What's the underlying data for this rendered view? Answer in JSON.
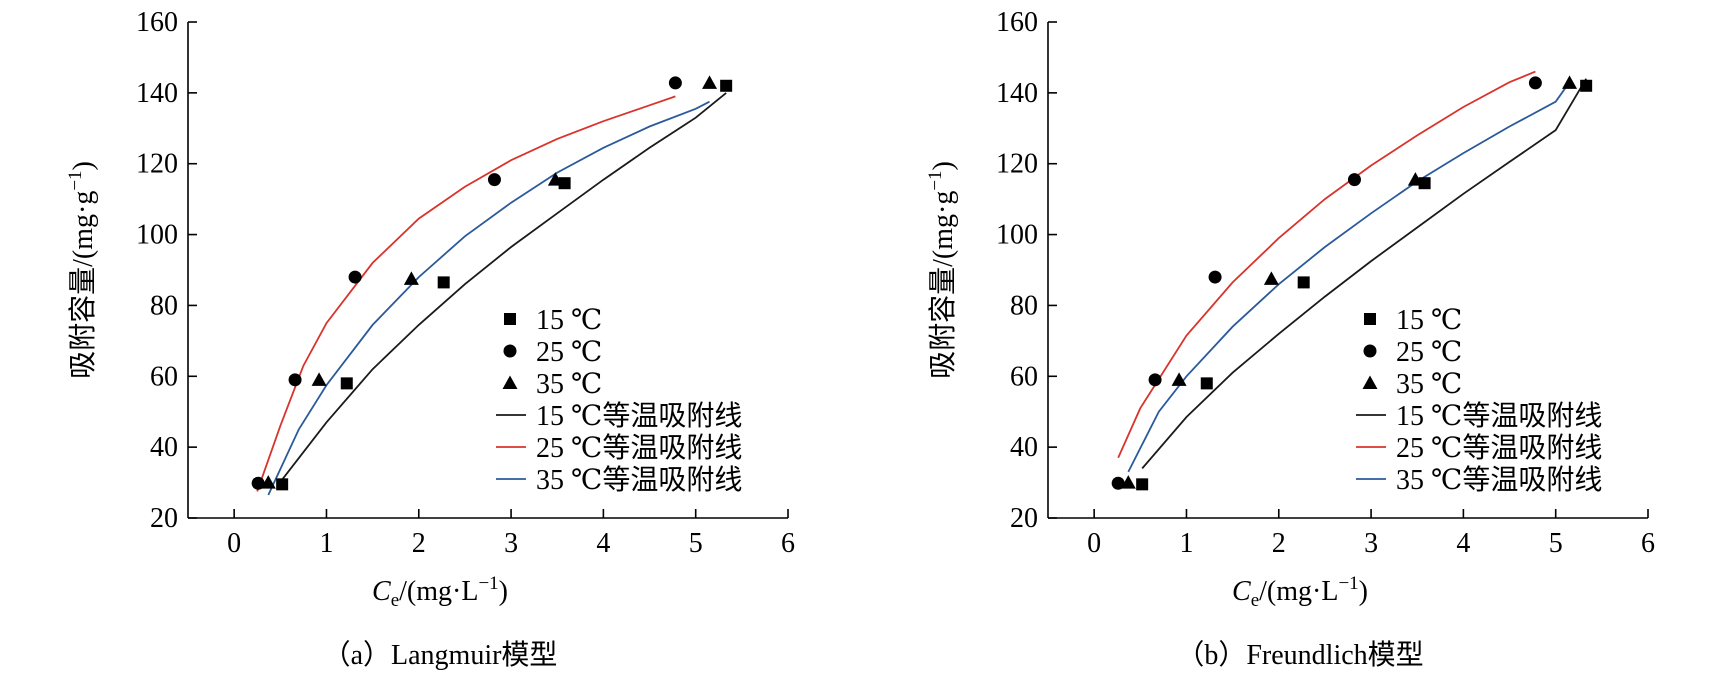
{
  "chart_data": [
    {
      "type": "scatter",
      "caption": "（a）Langmuir模型",
      "xlabel_main": "C",
      "xlabel_sub": "e",
      "xlabel_unit": "/(mg·L",
      "xlabel_sup": "−1",
      "xlabel_close": ")",
      "ylabel_main": "吸附容量/(mg·g",
      "ylabel_sup": "−1",
      "ylabel_close": ")",
      "xlim": [
        -0.5,
        6
      ],
      "ylim": [
        20,
        160
      ],
      "xticks": [
        "0",
        "1",
        "2",
        "3",
        "4",
        "5",
        "6"
      ],
      "xtick_values": [
        0,
        1,
        2,
        3,
        4,
        5,
        6
      ],
      "yticks": [
        "20",
        "40",
        "60",
        "80",
        "100",
        "120",
        "140",
        "160"
      ],
      "ytick_values": [
        20,
        40,
        60,
        80,
        100,
        120,
        140,
        160
      ],
      "legend_position": "center-right",
      "series": [
        {
          "name": "15 ℃",
          "marker": "square",
          "color": "#000000",
          "x": [
            0.52,
            1.22,
            2.27,
            3.58,
            5.33
          ],
          "y": [
            29.5,
            58.0,
            86.5,
            114.5,
            142.0
          ]
        },
        {
          "name": "25 ℃",
          "marker": "circle",
          "color": "#000000",
          "x": [
            0.26,
            0.66,
            1.31,
            2.82,
            4.78
          ],
          "y": [
            29.8,
            59.0,
            88.0,
            115.5,
            142.8
          ]
        },
        {
          "name": "35 ℃",
          "marker": "triangle",
          "color": "#000000",
          "x": [
            0.37,
            0.92,
            1.92,
            3.48,
            5.15
          ],
          "y": [
            30.0,
            59.0,
            87.5,
            115.5,
            142.8
          ]
        }
      ],
      "fits": [
        {
          "name": "15 ℃等温吸附线",
          "color": "#1a1a1a",
          "x": [
            0.48,
            1.0,
            1.5,
            2.0,
            2.5,
            3.0,
            3.5,
            4.0,
            4.5,
            5.0,
            5.33
          ],
          "y": [
            29.5,
            47.0,
            62.0,
            74.5,
            86.0,
            96.5,
            106.0,
            115.5,
            124.5,
            133.0,
            140.0
          ]
        },
        {
          "name": "25 ℃等温吸附线",
          "color": "#d8342c",
          "x": [
            0.25,
            0.5,
            0.75,
            1.0,
            1.5,
            2.0,
            2.5,
            3.0,
            3.5,
            4.0,
            4.5,
            4.78
          ],
          "y": [
            27.5,
            46.0,
            63.0,
            75.0,
            92.0,
            104.5,
            113.5,
            121.0,
            127.0,
            132.0,
            136.5,
            139.0
          ]
        },
        {
          "name": "35 ℃等温吸附线",
          "color": "#2b5a9b",
          "x": [
            0.37,
            0.7,
            1.0,
            1.5,
            2.0,
            2.5,
            3.0,
            3.5,
            4.0,
            4.5,
            5.0,
            5.15
          ],
          "y": [
            26.5,
            45.0,
            57.5,
            74.5,
            88.0,
            99.5,
            109.0,
            117.5,
            124.5,
            130.5,
            135.5,
            137.5
          ]
        }
      ]
    },
    {
      "type": "scatter",
      "caption": "（b）Freundlich模型",
      "xlabel_main": "C",
      "xlabel_sub": "e",
      "xlabel_unit": "/(mg·L",
      "xlabel_sup": "−1",
      "xlabel_close": ")",
      "ylabel_main": "吸附容量/(mg·g",
      "ylabel_sup": "−1",
      "ylabel_close": ")",
      "xlim": [
        -0.5,
        6
      ],
      "ylim": [
        20,
        160
      ],
      "xticks": [
        "0",
        "1",
        "2",
        "3",
        "4",
        "5",
        "6"
      ],
      "xtick_values": [
        0,
        1,
        2,
        3,
        4,
        5,
        6
      ],
      "yticks": [
        "20",
        "40",
        "60",
        "80",
        "100",
        "120",
        "140",
        "160"
      ],
      "ytick_values": [
        20,
        40,
        60,
        80,
        100,
        120,
        140,
        160
      ],
      "legend_position": "center-right",
      "series": [
        {
          "name": "15 ℃",
          "marker": "square",
          "color": "#000000",
          "x": [
            0.52,
            1.22,
            2.27,
            3.58,
            5.33
          ],
          "y": [
            29.5,
            58.0,
            86.5,
            114.5,
            142.0
          ]
        },
        {
          "name": "25 ℃",
          "marker": "circle",
          "color": "#000000",
          "x": [
            0.26,
            0.66,
            1.31,
            2.82,
            4.78
          ],
          "y": [
            29.8,
            59.0,
            88.0,
            115.5,
            142.8
          ]
        },
        {
          "name": "35 ℃",
          "marker": "triangle",
          "color": "#000000",
          "x": [
            0.37,
            0.92,
            1.92,
            3.48,
            5.15
          ],
          "y": [
            30.0,
            59.0,
            87.5,
            115.5,
            142.8
          ]
        }
      ],
      "fits": [
        {
          "name": "15 ℃等温吸附线",
          "color": "#1a1a1a",
          "x": [
            0.52,
            1.0,
            1.5,
            2.0,
            2.5,
            3.0,
            3.5,
            4.0,
            4.5,
            5.0,
            5.33
          ],
          "y": [
            34.0,
            48.5,
            61.0,
            72.0,
            82.5,
            92.5,
            102.0,
            111.5,
            120.5,
            129.5,
            144.0
          ]
        },
        {
          "name": "25 ℃等温吸附线",
          "color": "#d8342c",
          "x": [
            0.26,
            0.5,
            1.0,
            1.5,
            2.0,
            2.5,
            3.0,
            3.5,
            4.0,
            4.5,
            4.78
          ],
          "y": [
            37.0,
            51.0,
            71.5,
            86.5,
            99.0,
            110.0,
            119.5,
            128.0,
            136.0,
            143.0,
            146.0
          ]
        },
        {
          "name": "35 ℃等温吸附线",
          "color": "#2b5a9b",
          "x": [
            0.37,
            0.7,
            1.0,
            1.5,
            2.0,
            2.5,
            3.0,
            3.5,
            4.0,
            4.5,
            5.0,
            5.15
          ],
          "y": [
            33.0,
            50.0,
            60.0,
            74.0,
            86.0,
            96.5,
            106.0,
            115.0,
            123.0,
            130.5,
            137.5,
            143.0
          ]
        }
      ]
    }
  ]
}
